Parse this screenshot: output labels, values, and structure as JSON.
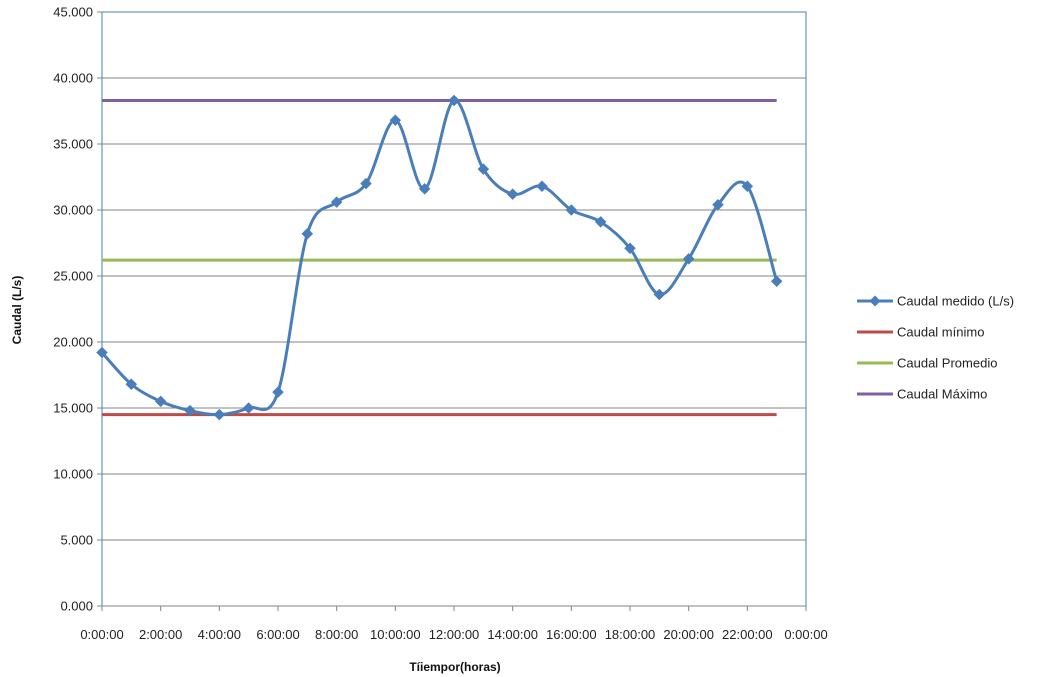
{
  "chart_data": {
    "type": "line",
    "title": "",
    "xlabel": "Tíiempor(horas)",
    "ylabel": "Caudal (L/s)",
    "ylim": [
      0,
      45
    ],
    "xlim": [
      0,
      24
    ],
    "grid": true,
    "legend_position": "right",
    "y_ticks": [
      {
        "value": 0,
        "label": "0.000"
      },
      {
        "value": 5,
        "label": "5.000"
      },
      {
        "value": 10,
        "label": "10.000"
      },
      {
        "value": 15,
        "label": "15.000"
      },
      {
        "value": 20,
        "label": "20.000"
      },
      {
        "value": 25,
        "label": "25.000"
      },
      {
        "value": 30,
        "label": "30.000"
      },
      {
        "value": 35,
        "label": "35.000"
      },
      {
        "value": 40,
        "label": "40.000"
      },
      {
        "value": 45,
        "label": "45.000"
      }
    ],
    "x_ticks": [
      {
        "value": 0,
        "label": "0:00:00"
      },
      {
        "value": 2,
        "label": "2:00:00"
      },
      {
        "value": 4,
        "label": "4:00:00"
      },
      {
        "value": 6,
        "label": "6:00:00"
      },
      {
        "value": 8,
        "label": "8:00:00"
      },
      {
        "value": 10,
        "label": "10:00:00"
      },
      {
        "value": 12,
        "label": "12:00:00"
      },
      {
        "value": 14,
        "label": "14:00:00"
      },
      {
        "value": 16,
        "label": "16:00:00"
      },
      {
        "value": 18,
        "label": "18:00:00"
      },
      {
        "value": 20,
        "label": "20:00:00"
      },
      {
        "value": 22,
        "label": "22:00:00"
      },
      {
        "value": 24,
        "label": "0:00:00"
      }
    ],
    "series": [
      {
        "name": "Caudal medido (L/s)",
        "color": "#4a7ebb",
        "marker": "diamond",
        "smooth": true,
        "x": [
          0,
          1,
          2,
          3,
          4,
          5,
          6,
          7,
          8,
          9,
          10,
          11,
          12,
          13,
          14,
          15,
          16,
          17,
          18,
          19,
          20,
          21,
          22,
          23
        ],
        "values": [
          19.2,
          16.8,
          15.5,
          14.8,
          14.5,
          15.0,
          16.2,
          28.2,
          30.6,
          32.0,
          36.8,
          31.6,
          38.3,
          33.1,
          31.2,
          31.8,
          30.0,
          29.1,
          27.1,
          23.6,
          26.3,
          30.4,
          31.8,
          24.6
        ]
      },
      {
        "name": "Caudal mínimo",
        "color": "#be4b48",
        "x": [
          0,
          23
        ],
        "values": [
          14.5,
          14.5
        ]
      },
      {
        "name": "Caudal Promedio",
        "color": "#98b954",
        "x": [
          0,
          23
        ],
        "values": [
          26.2,
          26.2
        ]
      },
      {
        "name": "Caudal Máximo",
        "color": "#7d60a0",
        "x": [
          0,
          23
        ],
        "values": [
          38.3,
          38.3
        ]
      }
    ]
  }
}
